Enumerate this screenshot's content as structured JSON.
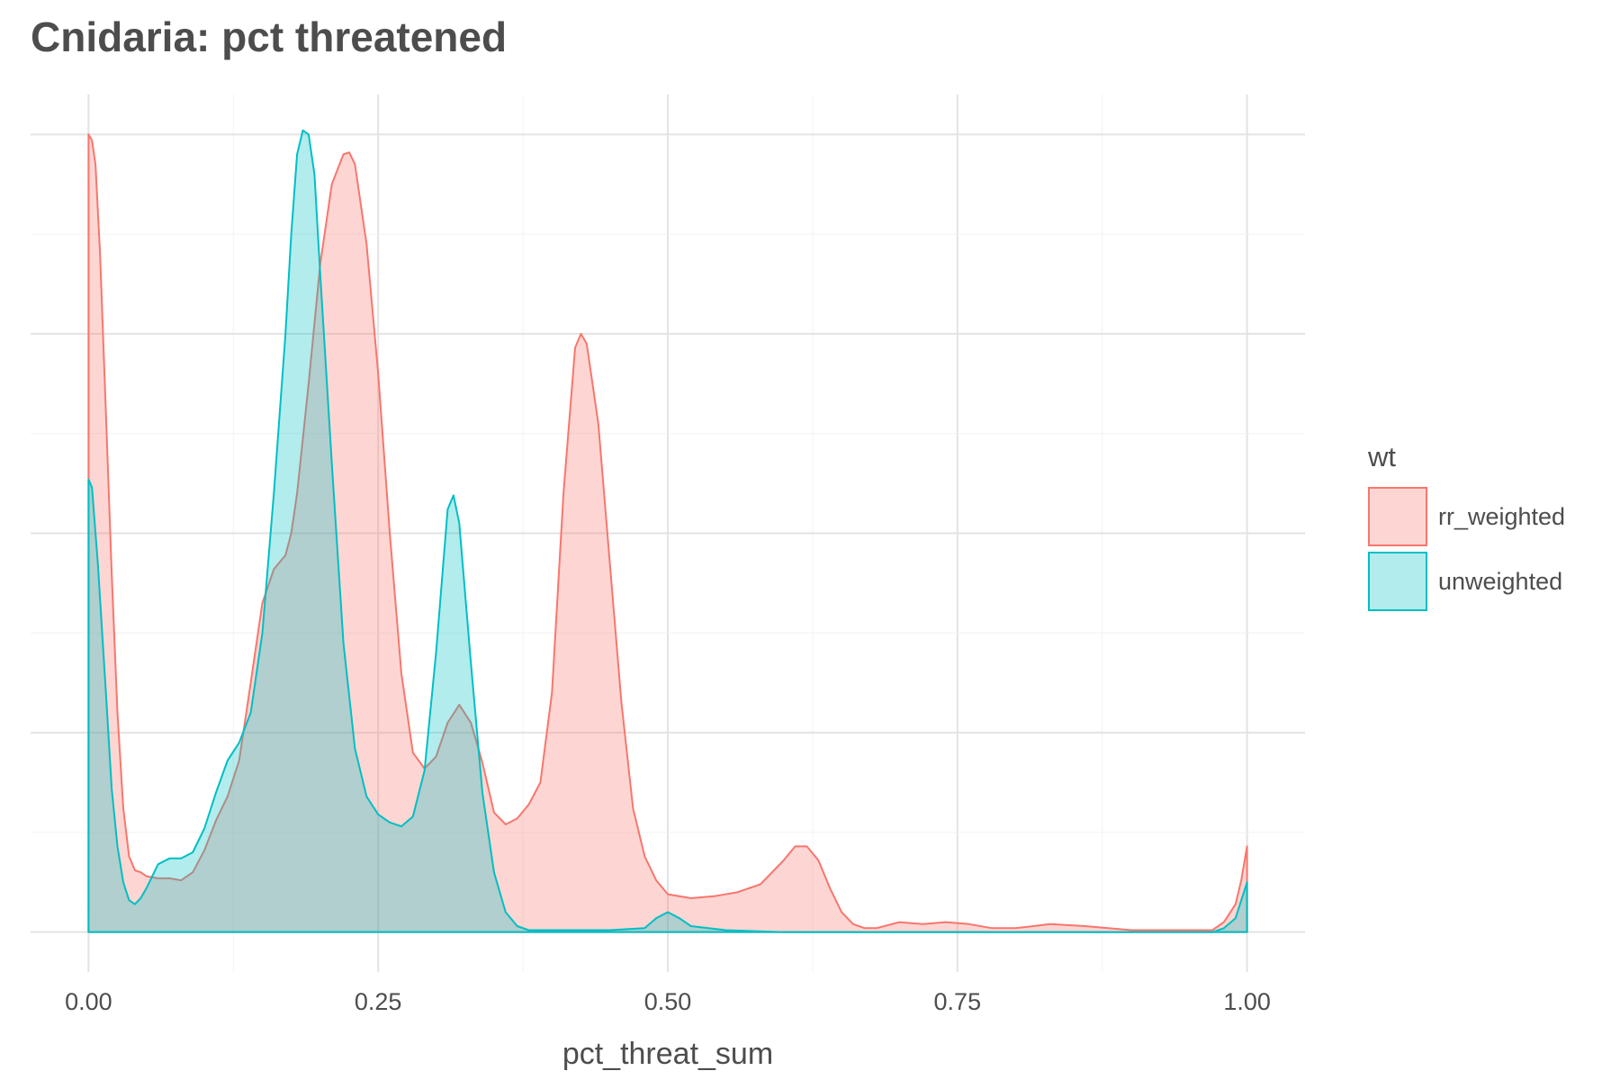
{
  "title": "Cnidaria: pct threatened",
  "chart_data": {
    "type": "area",
    "xlabel": "pct_threat_sum",
    "ylabel": "",
    "xlim": [
      -0.05,
      1.05
    ],
    "ylim": [
      -0.2,
      4.2
    ],
    "x_ticks": [
      0.0,
      0.25,
      0.5,
      0.75,
      1.0
    ],
    "x_tick_labels": [
      "0.00",
      "0.25",
      "0.50",
      "0.75",
      "1.00"
    ],
    "y_gridlines": [
      0,
      1,
      2,
      3,
      4
    ],
    "grid": true,
    "legend": {
      "title": "wt",
      "placement": "right"
    },
    "series": [
      {
        "name": "rr_weighted",
        "line_color": "#F8766D",
        "fill_color": "#F8766D",
        "fill_opacity": 0.3,
        "x": [
          0.0,
          0.003,
          0.006,
          0.01,
          0.015,
          0.02,
          0.025,
          0.03,
          0.035,
          0.04,
          0.045,
          0.05,
          0.06,
          0.07,
          0.08,
          0.09,
          0.1,
          0.11,
          0.12,
          0.13,
          0.14,
          0.15,
          0.16,
          0.17,
          0.175,
          0.18,
          0.19,
          0.2,
          0.21,
          0.22,
          0.225,
          0.23,
          0.24,
          0.25,
          0.26,
          0.27,
          0.28,
          0.29,
          0.3,
          0.31,
          0.32,
          0.33,
          0.34,
          0.35,
          0.36,
          0.37,
          0.38,
          0.39,
          0.4,
          0.41,
          0.42,
          0.425,
          0.43,
          0.44,
          0.45,
          0.46,
          0.47,
          0.48,
          0.49,
          0.5,
          0.52,
          0.54,
          0.56,
          0.58,
          0.6,
          0.61,
          0.62,
          0.63,
          0.64,
          0.65,
          0.66,
          0.67,
          0.68,
          0.7,
          0.72,
          0.74,
          0.76,
          0.78,
          0.8,
          0.83,
          0.86,
          0.9,
          0.92,
          0.95,
          0.97,
          0.98,
          0.99,
          0.995,
          1.0
        ],
        "y": [
          4.0,
          3.97,
          3.85,
          3.4,
          2.6,
          1.8,
          1.1,
          0.62,
          0.38,
          0.31,
          0.3,
          0.28,
          0.27,
          0.27,
          0.26,
          0.3,
          0.41,
          0.56,
          0.68,
          0.86,
          1.25,
          1.65,
          1.82,
          1.89,
          2.0,
          2.2,
          2.75,
          3.35,
          3.75,
          3.9,
          3.91,
          3.85,
          3.45,
          2.8,
          2.0,
          1.3,
          0.9,
          0.82,
          0.88,
          1.05,
          1.14,
          1.05,
          0.85,
          0.6,
          0.54,
          0.57,
          0.64,
          0.75,
          1.2,
          2.2,
          2.93,
          3.0,
          2.95,
          2.55,
          1.85,
          1.15,
          0.62,
          0.38,
          0.26,
          0.19,
          0.17,
          0.18,
          0.2,
          0.24,
          0.36,
          0.43,
          0.43,
          0.36,
          0.22,
          0.1,
          0.04,
          0.02,
          0.02,
          0.05,
          0.04,
          0.05,
          0.04,
          0.02,
          0.02,
          0.04,
          0.03,
          0.01,
          0.01,
          0.01,
          0.01,
          0.05,
          0.14,
          0.26,
          0.43
        ]
      },
      {
        "name": "unweighted",
        "line_color": "#00BFC4",
        "fill_color": "#00BFC4",
        "fill_opacity": 0.3,
        "x": [
          0.0,
          0.003,
          0.008,
          0.015,
          0.02,
          0.025,
          0.03,
          0.035,
          0.04,
          0.045,
          0.05,
          0.055,
          0.06,
          0.07,
          0.08,
          0.09,
          0.1,
          0.11,
          0.12,
          0.13,
          0.14,
          0.15,
          0.16,
          0.17,
          0.175,
          0.18,
          0.185,
          0.19,
          0.195,
          0.2,
          0.21,
          0.22,
          0.23,
          0.24,
          0.25,
          0.26,
          0.27,
          0.28,
          0.29,
          0.3,
          0.31,
          0.315,
          0.32,
          0.33,
          0.34,
          0.35,
          0.36,
          0.37,
          0.38,
          0.4,
          0.45,
          0.48,
          0.49,
          0.5,
          0.51,
          0.52,
          0.55,
          0.6,
          0.8,
          0.97,
          0.98,
          0.99,
          1.0
        ],
        "y": [
          2.27,
          2.23,
          1.85,
          1.2,
          0.72,
          0.43,
          0.25,
          0.16,
          0.14,
          0.17,
          0.22,
          0.28,
          0.34,
          0.37,
          0.37,
          0.4,
          0.52,
          0.7,
          0.86,
          0.95,
          1.1,
          1.5,
          2.2,
          3.0,
          3.5,
          3.9,
          4.02,
          4.0,
          3.8,
          3.3,
          2.35,
          1.45,
          0.92,
          0.68,
          0.59,
          0.55,
          0.53,
          0.58,
          0.81,
          1.4,
          2.12,
          2.19,
          2.05,
          1.35,
          0.7,
          0.3,
          0.1,
          0.03,
          0.01,
          0.01,
          0.01,
          0.02,
          0.07,
          0.1,
          0.07,
          0.03,
          0.01,
          0.0,
          0.0,
          0.0,
          0.02,
          0.07,
          0.25
        ]
      }
    ]
  }
}
